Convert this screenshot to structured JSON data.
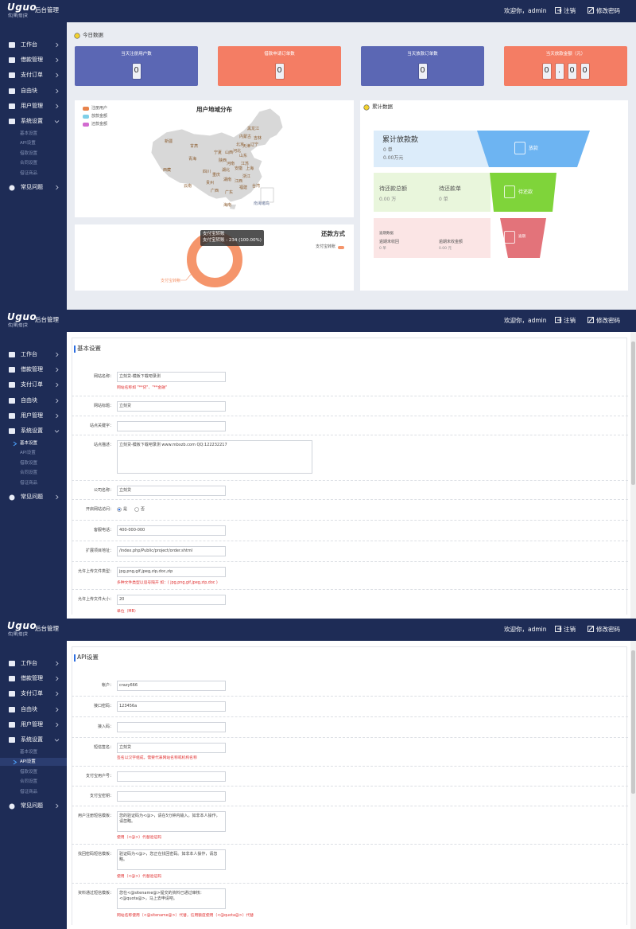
{
  "header": {
    "logo": "Uguo",
    "logo_sub": "优|果|借|贷",
    "title": "后台管理",
    "welcome": "欢迎你，admin",
    "logout": "注销",
    "change_password": "修改密码"
  },
  "sidebar": {
    "menu": [
      "工作台",
      "借款管理",
      "支付订单",
      "自由块",
      "用户管理",
      "系统设置",
      "常见问题"
    ],
    "submenu": [
      "基本设置",
      "API设置",
      "借款设置",
      "合同设置",
      "借证商品"
    ]
  },
  "dashboard": {
    "today": {
      "title": "今日数据",
      "cards": [
        {
          "title": "当天注册用户数",
          "digits": [
            "0"
          ],
          "color": "#5b67b4"
        },
        {
          "title": "借款申请订单数",
          "digits": [
            "0"
          ],
          "color": "#f47d64"
        },
        {
          "title": "当天放款订单数",
          "digits": [
            "0"
          ],
          "color": "#5b67b4"
        },
        {
          "title": "当天放款金额（元）",
          "digits": [
            "0",
            ".",
            "0",
            "0"
          ],
          "color": "#f47d64"
        }
      ]
    },
    "map": {
      "title": "用户地域分布",
      "legend": [
        {
          "name": "注册用户",
          "color": "#e8834c"
        },
        {
          "name": "放款金额",
          "color": "#7ecfe8"
        },
        {
          "name": "还款金额",
          "color": "#d26bd0"
        }
      ],
      "provinces": [
        "黑龙江",
        "吉林",
        "辽宁",
        "内蒙古",
        "北京",
        "天津",
        "河北",
        "山西",
        "山东",
        "新疆",
        "甘肃",
        "宁夏",
        "陕西",
        "河南",
        "江苏",
        "安徽",
        "上海",
        "西藏",
        "青海",
        "四川",
        "湖北",
        "浙江",
        "重庆",
        "湖南",
        "江西",
        "贵州",
        "福建",
        "云南",
        "广西",
        "广东",
        "台湾",
        "海南",
        "南海诸岛"
      ]
    },
    "repayment_chart": {
      "type": "pie",
      "title": "还款方式",
      "categories": [
        "支付宝转账"
      ],
      "values": [
        234
      ],
      "value_labels": [
        "支付宝转账 : 234 (100.00%)"
      ],
      "colors": [
        "#f5956b"
      ]
    },
    "cumulative": {
      "title": "累计数据",
      "rows": [
        {
          "title": "累计放款款",
          "lines": [
            "0 单",
            "0.00万元"
          ],
          "stage": "放款",
          "bg": "#dcecfa",
          "color": "#6db4f2"
        },
        {
          "items": [
            {
              "label": "待还款总额",
              "value": "0.00 万"
            },
            {
              "label": "待还款单",
              "value": "0 单"
            }
          ],
          "stage": "待还款",
          "bg": "#e9f6dc",
          "color": "#7fd43a"
        },
        {
          "title": "逾期数据",
          "items": [
            {
              "label": "逾期未收回",
              "value": "0 单"
            },
            {
              "label": "逾期未收金额",
              "value": "0.00 元"
            }
          ],
          "stage": "逾期",
          "bg": "#fbe5e5",
          "color": "#e3737a"
        }
      ]
    }
  },
  "basic_settings": {
    "title": "基本设置",
    "rows": [
      {
        "label": "网站名称：",
        "value": "立刻贷-模板下载吧录测",
        "hint": "网站名称如 \"**贷\"、\"**金融\""
      },
      {
        "label": "网站标题：",
        "value": "立刻贷"
      },
      {
        "label": "站点关键字：",
        "value": ""
      },
      {
        "label": "站点描述：",
        "value": "立刻贷-模板下载吧录测 www.mbxzb.com QQ:122232217",
        "kind": "textarea"
      },
      {
        "label": "公司名称：",
        "value": "立刻贷"
      },
      {
        "label": "开启网站访问：",
        "kind": "radio",
        "options": [
          "是",
          "否"
        ],
        "selected": 0
      },
      {
        "label": "客服电话：",
        "value": "400-000-000"
      },
      {
        "label": "扩展项目地址：",
        "value": "/index.php/Public/project/order.shtml"
      },
      {
        "label": "允许上传文件类型：",
        "value": "jpg,png,gif,jpeg,zip,doc,zip",
        "hint": "多种文件类型以逗号隔开 如：( jpg,png,gif,jpeg,zip,doc )"
      },
      {
        "label": "允许上传文件大小：",
        "value": "20",
        "hint": "单位（MB）"
      }
    ]
  },
  "api_settings": {
    "title": "API设置",
    "rows": [
      {
        "label": "帐户：",
        "value": "crazy666"
      },
      {
        "label": "接口密码：",
        "value": "123456a"
      },
      {
        "label": "接入码：",
        "value": ""
      },
      {
        "label": "短信签名：",
        "value": "立刻贷",
        "hint": "签名以汉字组成，需要代表网站名称或机构名称"
      },
      {
        "label": "支付宝用户号：",
        "value": ""
      },
      {
        "label": "支付宝密钥：",
        "value": ""
      },
      {
        "label": "用户注册短信模板：",
        "value": "您的验证码为<@>，请在5分钟内输入。如非本人操作，请忽略。",
        "kind": "textarea",
        "hint": "使用（<@>）代替验证码"
      },
      {
        "label": "找回密码短信模板：",
        "value": "验证码为<@>，您正在找回密码。如非本人操作，请忽略。",
        "kind": "textarea",
        "hint": "使用（<@>）代替验证码"
      },
      {
        "label": "资料通过短信模板：",
        "value": "您在<@sitename@>提交的资料已通过审核：<@quota@>，马上去申请吧。",
        "kind": "textarea",
        "hint": "网站名称使用（<@sitename@>）代替，信用额度使用（<@quota@>）代替"
      }
    ]
  }
}
